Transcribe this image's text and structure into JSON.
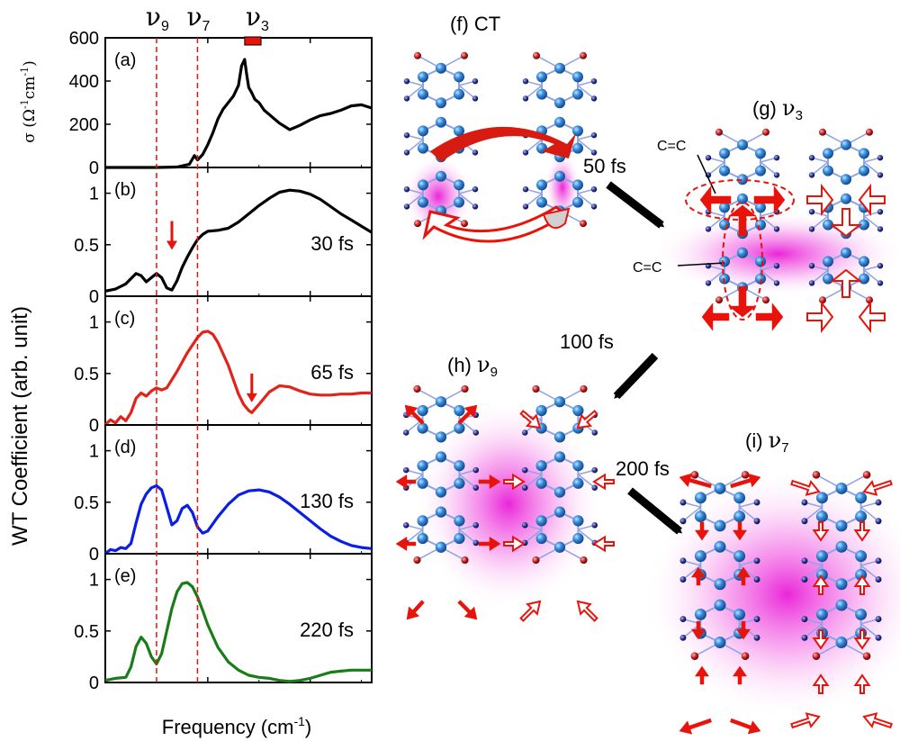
{
  "chart_data": {
    "type": "line",
    "xlabel": "Frequency (cm",
    "xlabel_sup": "-1",
    "xlabel_close": ")",
    "xlim": [
      0,
      2600
    ],
    "xticks": [
      "0",
      "1000",
      "2000"
    ],
    "xtick_values": [
      0,
      1000,
      2000
    ],
    "shared_ylabel": "WT Coefficient (arb. unit)",
    "mode_lines": [
      {
        "name": "ν9",
        "base": "ν",
        "sub": "9",
        "x": 500
      },
      {
        "name": "ν7",
        "base": "ν",
        "sub": "7",
        "x": 900
      },
      {
        "name": "ν3",
        "base": "ν",
        "sub": "3",
        "band": [
          1360,
          1520
        ]
      }
    ],
    "panels": [
      {
        "label": "(a)",
        "ylabel": "σ (Ω",
        "ylim": [
          0,
          600
        ],
        "yticks": [
          "0",
          "200",
          "400",
          "600"
        ],
        "ytick_values": [
          0,
          200,
          400,
          600
        ],
        "color": "#000000",
        "series": {
          "name": "optical conductivity",
          "x": [
            0,
            300,
            500,
            700,
            820,
            870,
            900,
            950,
            1000,
            1050,
            1100,
            1150,
            1200,
            1250,
            1300,
            1330,
            1360,
            1380,
            1400,
            1430,
            1460,
            1500,
            1550,
            1600,
            1650,
            1700,
            1750,
            1800,
            1850,
            1900,
            2000,
            2100,
            2200,
            2300,
            2400,
            2500,
            2600
          ],
          "y": [
            0,
            0,
            0,
            2,
            15,
            55,
            35,
            60,
            105,
            160,
            225,
            270,
            300,
            330,
            380,
            470,
            500,
            430,
            370,
            345,
            315,
            300,
            265,
            245,
            225,
            205,
            190,
            175,
            185,
            195,
            220,
            240,
            250,
            265,
            285,
            290,
            275
          ]
        }
      },
      {
        "label": "(b)",
        "time": "30 fs",
        "ylim": [
          0,
          1.25
        ],
        "yticks": [
          "0",
          "0.5",
          "1"
        ],
        "ytick_values": [
          0,
          0.5,
          1
        ],
        "color": "#000000",
        "arrow_x": 650,
        "series": {
          "name": "30 fs",
          "x": [
            0,
            100,
            200,
            300,
            350,
            400,
            450,
            500,
            550,
            600,
            650,
            700,
            750,
            800,
            850,
            900,
            950,
            1000,
            1100,
            1200,
            1300,
            1400,
            1500,
            1600,
            1700,
            1800,
            1900,
            2000,
            2100,
            2200,
            2300,
            2400,
            2500,
            2600
          ],
          "y": [
            0.05,
            0.07,
            0.12,
            0.22,
            0.2,
            0.14,
            0.18,
            0.22,
            0.18,
            0.08,
            0.06,
            0.15,
            0.28,
            0.38,
            0.47,
            0.55,
            0.6,
            0.63,
            0.64,
            0.66,
            0.72,
            0.8,
            0.88,
            0.95,
            1.01,
            1.03,
            1.02,
            0.99,
            0.94,
            0.87,
            0.8,
            0.74,
            0.68,
            0.62
          ]
        }
      },
      {
        "label": "(c)",
        "time": "65 fs",
        "ylim": [
          0,
          1.25
        ],
        "yticks": [
          "0",
          "0.5",
          "1"
        ],
        "ytick_values": [
          0,
          0.5,
          1
        ],
        "color": "#e32219",
        "arrow_x": 1430,
        "series": {
          "name": "65 fs",
          "x": [
            0,
            50,
            100,
            150,
            200,
            250,
            300,
            350,
            400,
            450,
            500,
            550,
            600,
            700,
            800,
            900,
            950,
            1000,
            1050,
            1100,
            1200,
            1300,
            1350,
            1400,
            1430,
            1500,
            1600,
            1700,
            1800,
            1900,
            2000,
            2100,
            2200,
            2300,
            2400,
            2500,
            2600
          ],
          "y": [
            0,
            0.05,
            0.02,
            0.08,
            0.04,
            0.12,
            0.26,
            0.31,
            0.28,
            0.33,
            0.36,
            0.34,
            0.36,
            0.52,
            0.7,
            0.85,
            0.9,
            0.91,
            0.88,
            0.8,
            0.58,
            0.3,
            0.2,
            0.14,
            0.12,
            0.2,
            0.32,
            0.38,
            0.37,
            0.33,
            0.3,
            0.29,
            0.29,
            0.3,
            0.3,
            0.31,
            0.31
          ]
        }
      },
      {
        "label": "(d)",
        "time": "130 fs",
        "ylim": [
          0,
          1.25
        ],
        "yticks": [
          "0",
          "0.5",
          "1"
        ],
        "ytick_values": [
          0,
          0.5,
          1
        ],
        "color": "#0a1ee6",
        "series": {
          "name": "130 fs",
          "x": [
            0,
            50,
            100,
            150,
            200,
            250,
            300,
            350,
            400,
            450,
            500,
            550,
            600,
            650,
            700,
            750,
            800,
            850,
            900,
            950,
            1000,
            1100,
            1200,
            1300,
            1400,
            1500,
            1600,
            1700,
            1800,
            1900,
            2000,
            2100,
            2200,
            2300,
            2400,
            2500,
            2600
          ],
          "y": [
            0,
            0.04,
            0.03,
            0.06,
            0.05,
            0.1,
            0.3,
            0.48,
            0.58,
            0.64,
            0.66,
            0.62,
            0.45,
            0.28,
            0.32,
            0.44,
            0.47,
            0.4,
            0.26,
            0.2,
            0.22,
            0.36,
            0.48,
            0.57,
            0.61,
            0.62,
            0.6,
            0.55,
            0.48,
            0.4,
            0.32,
            0.24,
            0.17,
            0.12,
            0.08,
            0.06,
            0.05
          ]
        }
      },
      {
        "label": "(e)",
        "time": "220 fs",
        "ylim": [
          0,
          1.25
        ],
        "yticks": [
          "0",
          "0.5",
          "1"
        ],
        "ytick_values": [
          0,
          0.5,
          1
        ],
        "color": "#197c19",
        "series": {
          "name": "220 fs",
          "x": [
            0,
            100,
            200,
            250,
            300,
            350,
            400,
            450,
            500,
            550,
            600,
            650,
            700,
            750,
            800,
            850,
            900,
            950,
            1000,
            1100,
            1200,
            1300,
            1400,
            1500,
            1600,
            1700,
            1800,
            1900,
            2000,
            2100,
            2200,
            2300,
            2400,
            2500,
            2600
          ],
          "y": [
            0.02,
            0.04,
            0.05,
            0.15,
            0.35,
            0.44,
            0.38,
            0.25,
            0.18,
            0.28,
            0.5,
            0.72,
            0.88,
            0.96,
            0.97,
            0.93,
            0.83,
            0.7,
            0.56,
            0.34,
            0.2,
            0.12,
            0.07,
            0.05,
            0.04,
            0.02,
            0.01,
            0.02,
            0.04,
            0.07,
            0.1,
            0.11,
            0.12,
            0.12,
            0.12
          ]
        }
      }
    ]
  },
  "ylabel_a_unit": "cm",
  "ylabel_a_sup1": "-1",
  "ylabel_a_sup2": "-1",
  "ylabel_a_close": ")",
  "diagram": {
    "panels": [
      {
        "label": "(f) CT"
      },
      {
        "label": "(g) ",
        "mode": "ν",
        "sub": "3"
      },
      {
        "label": "(h) ",
        "mode": "ν",
        "sub": "9"
      },
      {
        "label": "(i) ",
        "mode": "ν",
        "sub": "7"
      }
    ],
    "transition_times": [
      "50 fs",
      "100 fs",
      "200 fs"
    ],
    "bond_labels": [
      "C=C",
      "C=C"
    ],
    "colors": {
      "arrow": "#e8140c",
      "glow": "#e600d2",
      "atom": "#2b7fd3",
      "bond": "#8fa3e6",
      "hydrogen": "#b0101a"
    }
  }
}
